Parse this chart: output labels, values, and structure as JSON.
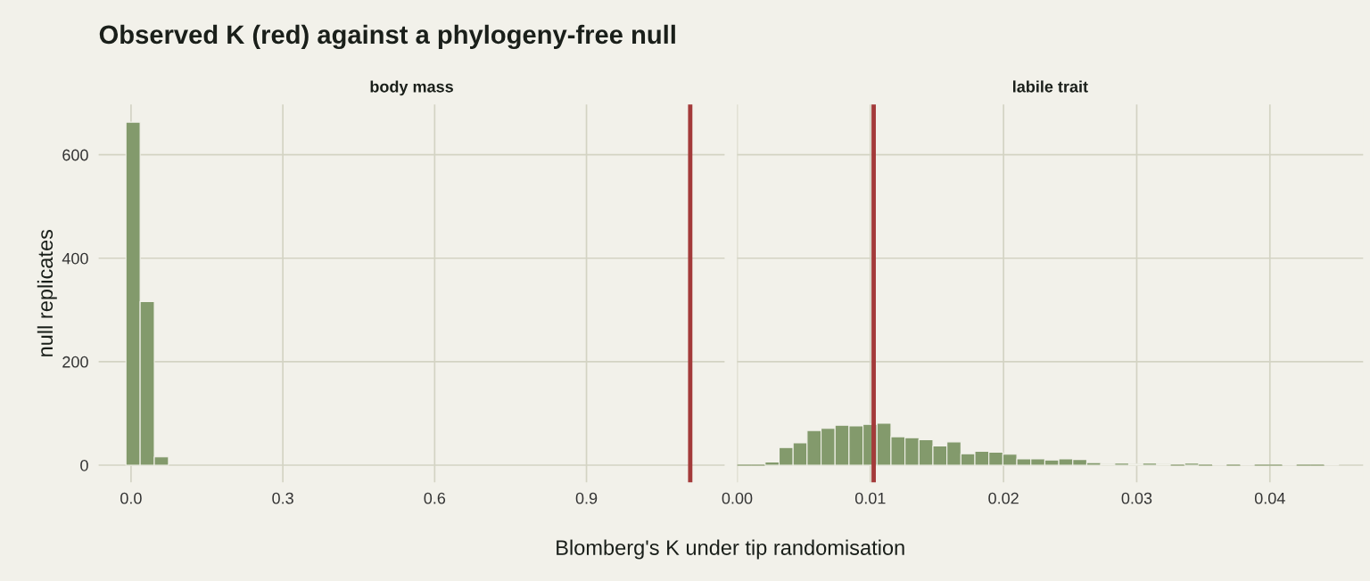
{
  "chart_data": [
    {
      "type": "histogram",
      "title": "Observed K (red) against a phylogeny-free null",
      "subtitle": "body mass",
      "xlabel": "Blomberg's K under tip randomisation",
      "ylabel": "null replicates",
      "bins": [
        -0.01,
        0.018,
        0.046,
        0.074
      ],
      "values": [
        663,
        316,
        16
      ],
      "color": "#839a6c",
      "xlim": [
        -0.064,
        1.173
      ],
      "ylim": [
        -33,
        697
      ],
      "xticks": [
        {
          "value": 0,
          "label": "0.0"
        },
        0.3,
        0.6,
        0.9
      ],
      "yticks": [
        0,
        200,
        400,
        600
      ],
      "grid": true,
      "ref_lines": [
        {
          "axis": "x",
          "value": 1.105,
          "color": "#a33a3a"
        }
      ]
    },
    {
      "type": "histogram",
      "subtitle": "labile trait",
      "bins": [
        0,
        0.00105,
        0.0021,
        0.00315,
        0.0042,
        0.00525,
        0.0063,
        0.00735,
        0.0084,
        0.00945,
        0.0105,
        0.01155,
        0.0126,
        0.01365,
        0.0147,
        0.01575,
        0.0168,
        0.01785,
        0.0189,
        0.01995,
        0.021,
        0.02205,
        0.0231,
        0.02415,
        0.0252,
        0.02625,
        0.0273,
        0.02835,
        0.0294,
        0.03045,
        0.0315,
        0.03255,
        0.0336,
        0.03465,
        0.0357,
        0.03675,
        0.0378,
        0.03885,
        0.0399,
        0.04095,
        0.042,
        0.04305,
        0.0441,
        0.04515
      ],
      "values": [
        0,
        0,
        6,
        34,
        43,
        67,
        71,
        77,
        76,
        79,
        81,
        55,
        53,
        49,
        37,
        45,
        22,
        27,
        25,
        21,
        12,
        12,
        10,
        12,
        11,
        5,
        2,
        4,
        2,
        4,
        2,
        0,
        4,
        0,
        1,
        0,
        1,
        0,
        0,
        1,
        0,
        0,
        1
      ],
      "color": "#839a6c",
      "xlim": [
        0,
        0.047
      ],
      "ylim": [
        -33,
        697
      ],
      "xticks": [
        {
          "value": 0,
          "label": "0.00"
        },
        0.01,
        0.02,
        0.03,
        0.04
      ],
      "yticks": [
        0,
        200,
        400,
        600
      ],
      "tick_labels": "x",
      "grid": true,
      "ref_lines": [
        {
          "axis": "x",
          "value": 0.01025,
          "color": "#a33a3a"
        }
      ]
    }
  ]
}
